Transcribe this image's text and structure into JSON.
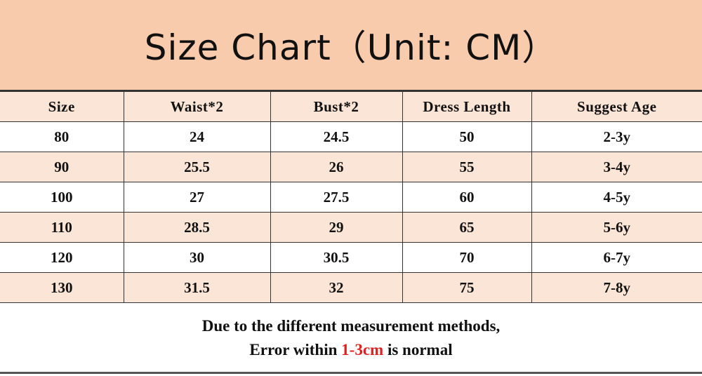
{
  "title": "Size Chart（Unit: CM）",
  "columns": [
    "Size",
    "Waist*2",
    "Bust*2",
    "Dress Length",
    "Suggest Age"
  ],
  "rows": [
    [
      "80",
      "24",
      "24.5",
      "50",
      "2-3y"
    ],
    [
      "90",
      "25.5",
      "26",
      "55",
      "3-4y"
    ],
    [
      "100",
      "27",
      "27.5",
      "60",
      "4-5y"
    ],
    [
      "110",
      "28.5",
      "29",
      "65",
      "5-6y"
    ],
    [
      "120",
      "30",
      "30.5",
      "70",
      "6-7y"
    ],
    [
      "130",
      "31.5",
      "32",
      "75",
      "7-8y"
    ]
  ],
  "note": {
    "line1": "Due to the different measurement methods,",
    "line2_prefix": "Error within ",
    "line2_highlight": "1-3cm",
    "line2_suffix": " is normal"
  },
  "colors": {
    "title_bg": "#f8cbad",
    "row_alt_bg": "#fbe5d6",
    "highlight": "#e02020"
  }
}
